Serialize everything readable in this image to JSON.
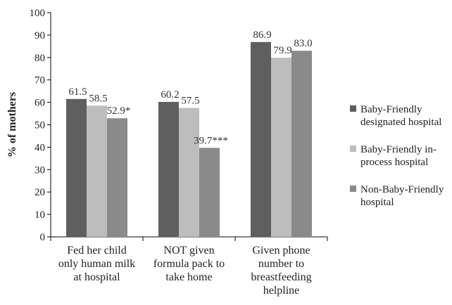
{
  "chart_data": {
    "type": "bar",
    "title": "",
    "xlabel": "",
    "ylabel": "% of mothers",
    "ylim": [
      0,
      100
    ],
    "yticks": [
      0,
      10,
      20,
      30,
      40,
      50,
      60,
      70,
      80,
      90,
      100
    ],
    "categories": [
      [
        "Fed her child",
        "only human milk",
        "at hospital"
      ],
      [
        "NOT given",
        "formula pack to",
        "take home"
      ],
      [
        "Given phone",
        "number to",
        "breastfeeding",
        "helpline"
      ]
    ],
    "series": [
      {
        "name": [
          "Baby-Friendly",
          "designated hospital"
        ],
        "color": "#5f5f5f",
        "values": [
          61.5,
          60.2,
          86.9
        ],
        "labels": [
          "61.5",
          "60.2",
          "86.9"
        ]
      },
      {
        "name": [
          "Baby-Friendly in-",
          "process hospital"
        ],
        "color": "#bdbdbd",
        "values": [
          58.5,
          57.5,
          79.9
        ],
        "labels": [
          "58.5",
          "57.5",
          "79.9"
        ]
      },
      {
        "name": [
          "Non-Baby-Friendly",
          "hospital"
        ],
        "color": "#8a8a8a",
        "values": [
          52.9,
          39.7,
          83.0
        ],
        "labels": [
          "52.9*",
          "39.7***",
          "83.0"
        ]
      }
    ],
    "grid": false,
    "legend_position": "right"
  }
}
